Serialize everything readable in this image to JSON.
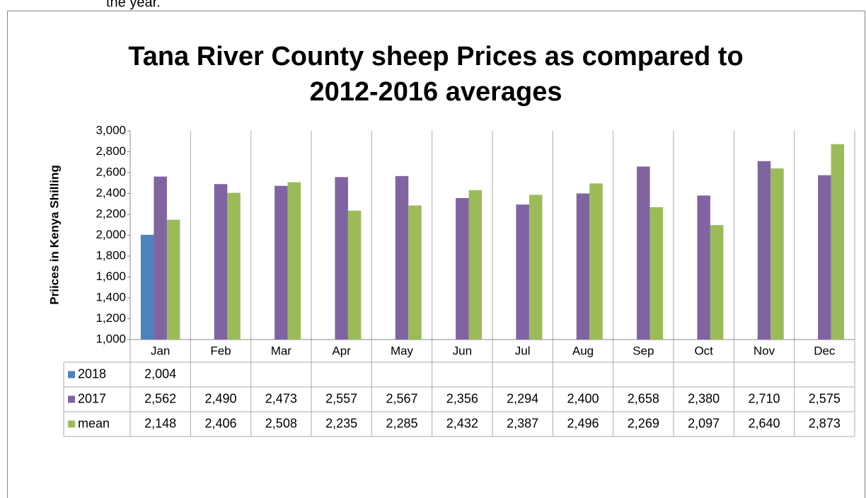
{
  "page_text": "the year.",
  "chart_data": {
    "type": "bar",
    "title": [
      "Tana River County sheep  Prices as compared to",
      "2012-2016 averages"
    ],
    "y_label": "Priices  in Kenya Shilling",
    "categories": [
      "Jan",
      "Feb",
      "Mar",
      "Apr",
      "May",
      "Jun",
      "Jul",
      "Aug",
      "Sep",
      "Oct",
      "Nov",
      "Dec"
    ],
    "series": [
      {
        "name": "2018",
        "color": "#4f81bd",
        "values": [
          2004,
          null,
          null,
          null,
          null,
          null,
          null,
          null,
          null,
          null,
          null,
          null
        ],
        "value_labels": [
          "2,004",
          null,
          null,
          null,
          null,
          null,
          null,
          null,
          null,
          null,
          null,
          null
        ]
      },
      {
        "name": "2017",
        "color": "#8064a2",
        "values": [
          2562,
          2490,
          2473,
          2557,
          2567,
          2356,
          2294,
          2400,
          2658,
          2380,
          2710,
          2575
        ],
        "value_labels": [
          "2,562",
          "2,490",
          "2,473",
          "2,557",
          "2,567",
          "2,356",
          "2,294",
          "2,400",
          "2,658",
          "2,380",
          "2,710",
          "2,575"
        ]
      },
      {
        "name": "mean",
        "color": "#9bbb59",
        "values": [
          2148,
          2406,
          2508,
          2235,
          2285,
          2432,
          2387,
          2496,
          2269,
          2097,
          2640,
          2873
        ],
        "value_labels": [
          "2,148",
          "2,406",
          "2,508",
          "2,235",
          "2,285",
          "2,432",
          "2,387",
          "2,496",
          "2,269",
          "2,097",
          "2,640",
          "2,873"
        ]
      }
    ],
    "ylim": [
      1000,
      3000
    ],
    "yticks": [
      {
        "value": 1000,
        "label": "1,000"
      },
      {
        "value": 1200,
        "label": "1,200"
      },
      {
        "value": 1400,
        "label": "1,400"
      },
      {
        "value": 1600,
        "label": "1,600"
      },
      {
        "value": 1800,
        "label": "1,800"
      },
      {
        "value": 2000,
        "label": "2,000"
      },
      {
        "value": 2200,
        "label": "2,200"
      },
      {
        "value": 2400,
        "label": "2,400"
      },
      {
        "value": 2600,
        "label": "2,600"
      },
      {
        "value": 2800,
        "label": "2,800"
      },
      {
        "value": 3000,
        "label": "3,000"
      }
    ],
    "grid": false
  }
}
